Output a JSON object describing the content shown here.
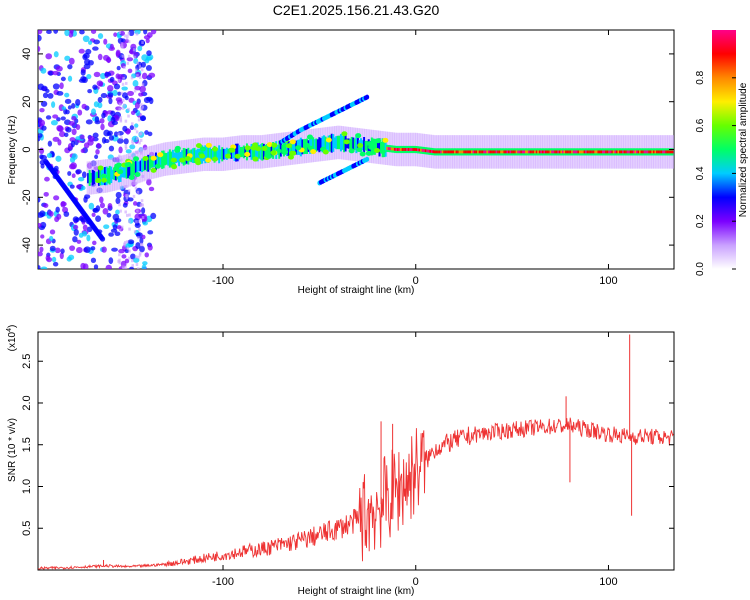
{
  "title": "C2E1.2025.156.21.43.G20",
  "chart_data": [
    {
      "type": "heatmap",
      "title": "C2E1.2025.156.21.43.G20",
      "xlabel": "Height of straight line (km)",
      "ylabel": "Frequency (Hz)",
      "xlim": [
        -196,
        134
      ],
      "ylim": [
        -50,
        50
      ],
      "xticks": [
        -100,
        0,
        100
      ],
      "yticks": [
        -40,
        -20,
        0,
        20,
        40
      ],
      "colorbar": {
        "label": "Normalized spectral amplitude",
        "range": [
          0,
          1
        ],
        "ticks": [
          "0.0",
          "0.2",
          "0.4",
          "0.6",
          "0.8"
        ],
        "colors": [
          "#ffffff",
          "#c9a0ff",
          "#7b00ff",
          "#0000ff",
          "#00ccff",
          "#00ff66",
          "#66ff00",
          "#ffee00",
          "#ff8800",
          "#ff0000",
          "#ff0088"
        ]
      },
      "ridge": {
        "x": [
          -170,
          -160,
          -150,
          -140,
          -130,
          -120,
          -110,
          -100,
          -90,
          -80,
          -70,
          -60,
          -50,
          -40,
          -30,
          -20,
          -10,
          0,
          10,
          20,
          40,
          60,
          80,
          100,
          120,
          134
        ],
        "y": [
          -12,
          -11,
          -9,
          -6,
          -4,
          -3,
          -2,
          -2,
          -1,
          -1,
          0,
          1,
          2,
          3,
          2,
          1,
          0,
          0,
          -1,
          -1,
          -1,
          -1,
          -1,
          -1,
          -1,
          -1
        ]
      },
      "upper_branch": {
        "x": [
          -70,
          -60,
          -50,
          -40,
          -30,
          -25
        ],
        "y": [
          3,
          8,
          12,
          16,
          20,
          22
        ]
      },
      "lower_branch": {
        "x": [
          -50,
          -40,
          -30,
          -25
        ],
        "y": [
          -14,
          -10,
          -6,
          -4
        ]
      }
    },
    {
      "type": "line",
      "xlabel": "Height of straight line (km)",
      "ylabel": "SNR (10 * v/v)",
      "yscale_label_main": "(x10",
      "yscale_label_exp": "4",
      "yscale_label_end": ")",
      "xlim": [
        -196,
        134
      ],
      "ylim": [
        0,
        2.85
      ],
      "xticks": [
        -100,
        0,
        100
      ],
      "yticks": [
        0.5,
        1.0,
        1.5,
        2.0,
        2.5
      ],
      "ytick_labels": [
        "0.5",
        "1.0",
        "1.5",
        "2.0",
        "2.5"
      ],
      "color": "#ee3333",
      "series": [
        {
          "x": [
            -196,
            -180,
            -160,
            -150,
            -140,
            -130,
            -120,
            -110,
            -100,
            -90,
            -80,
            -70,
            -60,
            -50,
            -40,
            -30,
            -20,
            -15,
            -10,
            -5,
            0,
            5,
            10,
            20,
            30,
            40,
            50,
            60,
            70,
            80,
            90,
            100,
            110,
            120,
            134
          ],
          "y": [
            0.02,
            0.03,
            0.05,
            0.04,
            0.05,
            0.07,
            0.1,
            0.14,
            0.18,
            0.22,
            0.25,
            0.3,
            0.35,
            0.42,
            0.5,
            0.6,
            0.75,
            0.85,
            0.95,
            1.05,
            1.2,
            1.3,
            1.45,
            1.55,
            1.62,
            1.65,
            1.68,
            1.7,
            1.72,
            1.73,
            1.68,
            1.63,
            1.6,
            1.6,
            1.58
          ]
        }
      ],
      "spikes": [
        {
          "x": -162,
          "y": 0.12
        },
        {
          "x": -18,
          "y": 1.78
        },
        {
          "x": -12,
          "y": 1.75
        },
        {
          "x": 78,
          "y": 2.08
        },
        {
          "x": 80,
          "y": 1.05
        },
        {
          "x": 111,
          "y": 2.82
        },
        {
          "x": 112,
          "y": 0.65
        }
      ]
    }
  ]
}
